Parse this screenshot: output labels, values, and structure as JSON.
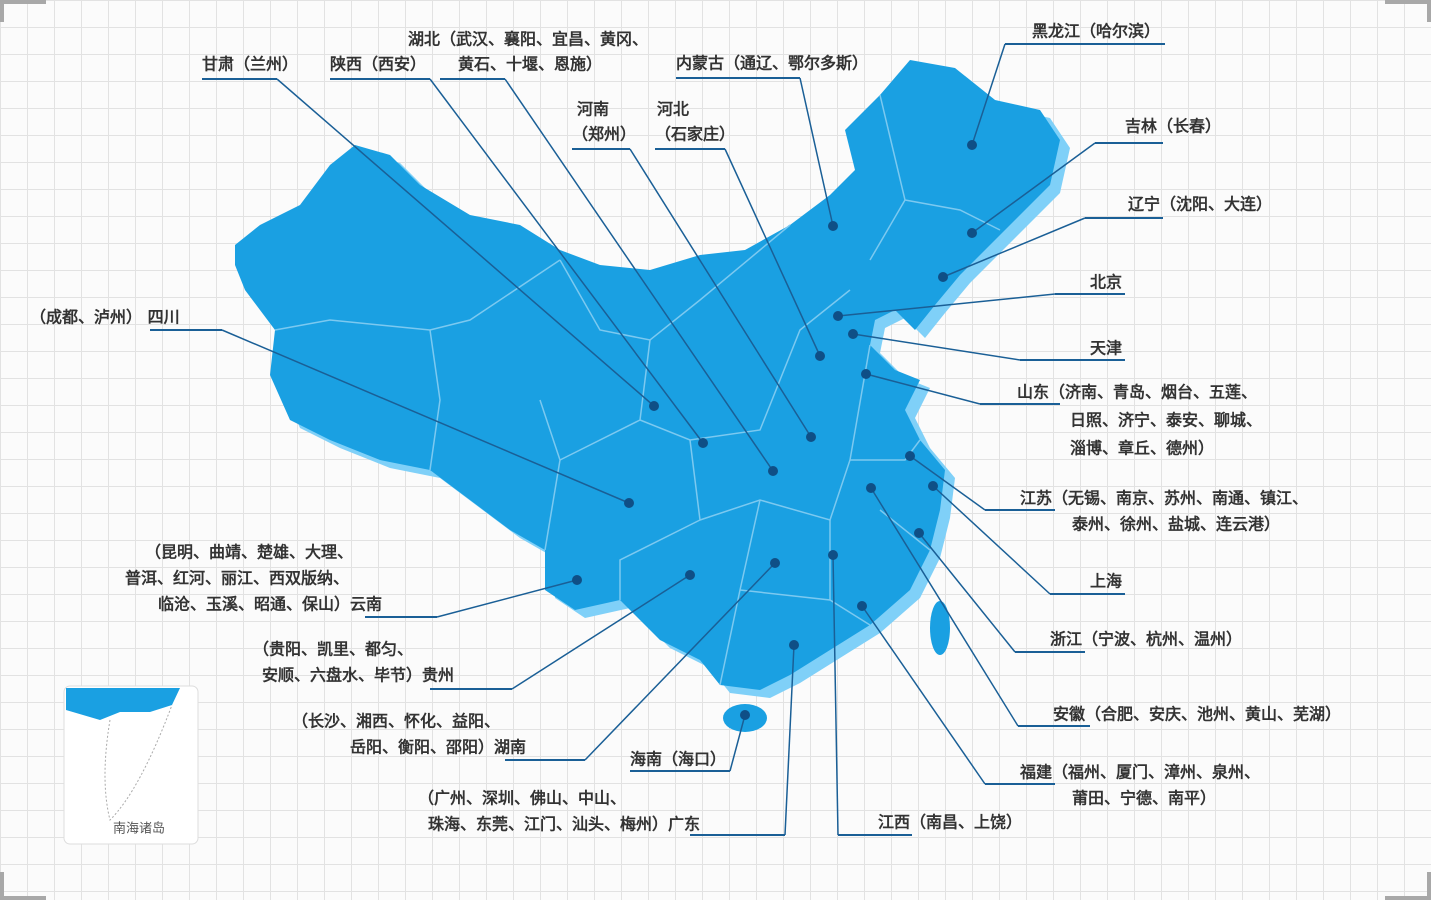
{
  "map": {
    "inset_label": "南海诸岛",
    "labels": [
      {
        "lines": [
          "黑龙江（哈尔滨）"
        ]
      },
      {
        "lines": [
          "吉林（长春）"
        ]
      },
      {
        "lines": [
          "辽宁（沈阳、大连）"
        ]
      },
      {
        "lines": [
          "北京"
        ]
      },
      {
        "lines": [
          "天津"
        ]
      },
      {
        "lines": [
          "山东（济南、青岛、烟台、五莲、",
          "日照、济宁、泰安、聊城、",
          "淄博、章丘、德州）"
        ]
      },
      {
        "lines": [
          "江苏（无锡、南京、苏州、南通、镇江、",
          "泰州、徐州、盐城、连云港）"
        ]
      },
      {
        "lines": [
          "上海"
        ]
      },
      {
        "lines": [
          "浙江（宁波、杭州、温州）"
        ]
      },
      {
        "lines": [
          "安徽（合肥、安庆、池州、黄山、芜湖）"
        ]
      },
      {
        "lines": [
          "福建（福州、厦门、漳州、泉州、",
          "莆田、宁德、南平）"
        ]
      },
      {
        "lines": [
          "江西（南昌、上饶）"
        ]
      },
      {
        "lines": [
          "（广州、深圳、佛山、中山、",
          "珠海、东莞、江门、汕头、梅州）广东"
        ]
      },
      {
        "lines": [
          "海南（海口）"
        ]
      },
      {
        "lines": [
          "（长沙、湘西、怀化、益阳、",
          "岳阳、衡阳、邵阳）湖南"
        ]
      },
      {
        "lines": [
          "（贵阳、凯里、都匀、",
          "安顺、六盘水、毕节）贵州"
        ]
      },
      {
        "lines": [
          "（昆明、曲靖、楚雄、大理、",
          "普洱、红河、丽江、西双版纳、",
          "临沧、玉溪、昭通、保山）云南"
        ]
      },
      {
        "lines": [
          "（成都、泸州） 四川"
        ]
      },
      {
        "lines": [
          "甘肃（兰州）"
        ]
      },
      {
        "lines": [
          "陕西（西安）"
        ]
      },
      {
        "lines": [
          "湖北（武汉、襄阳、宜昌、黄冈、",
          "黄石、十堰、恩施）"
        ]
      },
      {
        "lines": [
          "河南",
          "（郑州）"
        ]
      },
      {
        "lines": [
          "河北",
          "（石家庄）"
        ]
      },
      {
        "lines": [
          "内蒙古（通辽、鄂尔多斯）"
        ]
      }
    ]
  }
}
